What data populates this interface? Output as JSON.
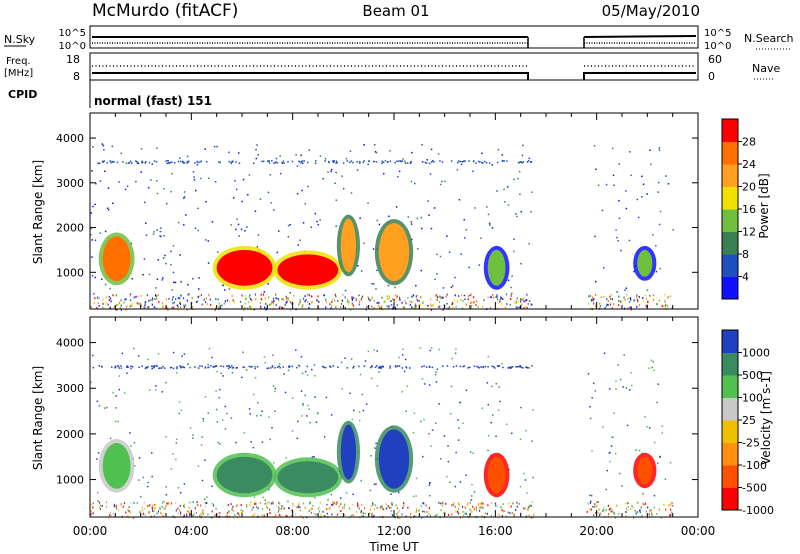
{
  "header": {
    "station": "McMurdo (fitACF)",
    "beam": "Beam 01",
    "date": "05/May/2010"
  },
  "noise_panel": {
    "left_label": "N.Sky",
    "left_ticks": [
      "10^5",
      "10^0"
    ],
    "right_label": "N.Search",
    "right_ticks": [
      "10^5",
      "10^0"
    ]
  },
  "freq_panel": {
    "left_label_line1": "Freq.",
    "left_label_line2": "[MHz]",
    "left_ticks": [
      "18",
      "8"
    ],
    "right_label": "Nave",
    "right_ticks": [
      "60",
      "0"
    ]
  },
  "cpid_panel": {
    "label": "CPID",
    "value": "normal (fast) 151"
  },
  "chart_data": [
    {
      "type": "heatmap",
      "name": "power",
      "ylabel": "Slant Range [km]",
      "xlabel": "Time UT",
      "ylim": [
        180,
        4560
      ],
      "xlim": [
        0,
        24
      ],
      "yticks": [
        "1000",
        "2000",
        "3000",
        "4000"
      ],
      "xticks": [
        "00:00",
        "04:00",
        "08:00",
        "12:00",
        "16:00",
        "20:00",
        "00:00"
      ],
      "colorbar": {
        "label": "Power [dB]",
        "ticks": [
          "4",
          "8",
          "12",
          "16",
          "20",
          "24",
          "28"
        ],
        "colors": [
          "#1010ff",
          "#2050c0",
          "#3a8050",
          "#70c040",
          "#f0e000",
          "#ffa020",
          "#ff7000",
          "#ff0000"
        ]
      },
      "data_gap_hours": [
        17.5,
        19.5
      ],
      "echo_regions": [
        {
          "t0": 0.5,
          "t1": 1.6,
          "r0": 800,
          "r1": 1800,
          "level": 24
        },
        {
          "t0": 5.0,
          "t1": 7.2,
          "r0": 700,
          "r1": 1500,
          "level": 28
        },
        {
          "t0": 7.4,
          "t1": 9.8,
          "r0": 700,
          "r1": 1400,
          "level": 28
        },
        {
          "t0": 9.9,
          "t1": 10.5,
          "r0": 1000,
          "r1": 2200,
          "level": 20
        },
        {
          "t0": 11.4,
          "t1": 12.6,
          "r0": 800,
          "r1": 2100,
          "level": 20
        },
        {
          "t0": 15.7,
          "t1": 16.4,
          "r0": 700,
          "r1": 1500,
          "level": 12
        },
        {
          "t0": 21.6,
          "t1": 22.2,
          "r0": 900,
          "r1": 1500,
          "level": 12
        }
      ]
    },
    {
      "type": "heatmap",
      "name": "velocity",
      "ylabel": "Slant Range [km]",
      "xlabel": "Time UT",
      "ylim": [
        180,
        4560
      ],
      "xlim": [
        0,
        24
      ],
      "yticks": [
        "1000",
        "2000",
        "3000",
        "4000"
      ],
      "xticks": [
        "00:00",
        "04:00",
        "08:00",
        "12:00",
        "16:00",
        "20:00",
        "00:00"
      ],
      "colorbar": {
        "label": "Velocity [m s-1]",
        "ticks": [
          "1000",
          "500",
          "100",
          "25",
          "-25",
          "-100",
          "-500",
          "-1000"
        ],
        "colors": [
          "#2040c0",
          "#3a8c60",
          "#50c050",
          "#c8c8c8",
          "#f0c000",
          "#ff9010",
          "#ff5000",
          "#ff0000"
        ]
      },
      "data_gap_hours": [
        17.5,
        19.5
      ],
      "echo_regions": [
        {
          "t0": 0.5,
          "t1": 1.6,
          "r0": 800,
          "r1": 1800,
          "level": 100
        },
        {
          "t0": 5.0,
          "t1": 7.2,
          "r0": 700,
          "r1": 1500,
          "level": 500
        },
        {
          "t0": 7.4,
          "t1": 9.8,
          "r0": 700,
          "r1": 1400,
          "level": 500
        },
        {
          "t0": 9.9,
          "t1": 10.5,
          "r0": 1000,
          "r1": 2200,
          "level": 1000
        },
        {
          "t0": 11.4,
          "t1": 12.6,
          "r0": 800,
          "r1": 2100,
          "level": 1000
        },
        {
          "t0": 15.7,
          "t1": 16.4,
          "r0": 700,
          "r1": 1500,
          "level": -500
        },
        {
          "t0": 21.6,
          "t1": 22.2,
          "r0": 900,
          "r1": 1500,
          "level": -500
        }
      ]
    }
  ]
}
